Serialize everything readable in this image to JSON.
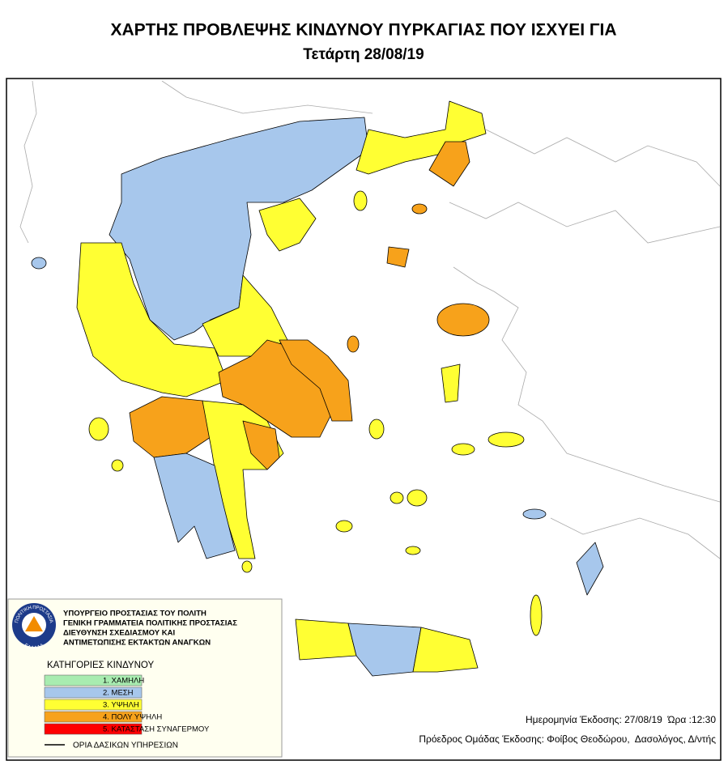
{
  "header": {
    "title": "ΧΑΡΤΗΣ ΠΡΟΒΛΕΨΗΣ ΚΙΝΔΥΝΟΥ ΠΥΡΚΑΓΙΑΣ ΠΟΥ ΙΣΧΥΕΙ ΓΙΑ",
    "subtitle": "Τετάρτη 28/08/19"
  },
  "legend": {
    "agency": {
      "emblem_top": "ΠΟΛΙΤΙΚΗ ΠΡΟΣΤΑΣΙΑ",
      "emblem_bottom": "ΕΛΛΑΔΑ",
      "lines": [
        "ΥΠΟΥΡΓΕΙΟ ΠΡΟΣΤΑΣΙΑΣ ΤΟΥ ΠΟΛΙΤΗ",
        "ΓΕΝΙΚΗ ΓΡΑΜΜΑΤΕΙΑ ΠΟΛΙΤΙΚΗΣ ΠΡΟΣΤΑΣΙΑΣ",
        "ΔΙΕΥΘΥΝΣΗ ΣΧΕΔΙΑΣΜΟΥ ΚΑΙ",
        "ΑΝΤΙΜΕΤΩΠΙΣΗΣ ΕΚΤΑΚΤΩΝ ΑΝΑΓΚΩΝ"
      ]
    },
    "title": "ΚΑΤΗΓΟΡΙΕΣ ΚΙΝΔΥΝΟΥ",
    "categories": [
      {
        "label": "1. ΧΑΜΗΛΗ",
        "color": "#a8ecb0"
      },
      {
        "label": "2. ΜΕΣΗ",
        "color": "#a7c7ec"
      },
      {
        "label": "3. ΥΨΗΛΗ",
        "color": "#ffff33"
      },
      {
        "label": "4. ΠΟΛΥ ΥΨΗΛΗ",
        "color": "#f7a21b"
      },
      {
        "label": "5. ΚΑΤΑΣΤΑΣΗ ΣΥΝΑΓΕΡΜΟΥ",
        "color": "#ff0000"
      }
    ],
    "boundary": "ΟΡΙΑ ΔΑΣΙΚΩΝ ΥΠΗΡΕΣΙΩΝ"
  },
  "footer": {
    "issue": "Ημερομηνία Έκδοσης: 27/08/19  Ώρα :12:30",
    "author": "Πρόεδρος Ομάδας Έκδοσης: Φοίβος Θεοδώρου,  Δασολόγος, Δ/ντής"
  }
}
